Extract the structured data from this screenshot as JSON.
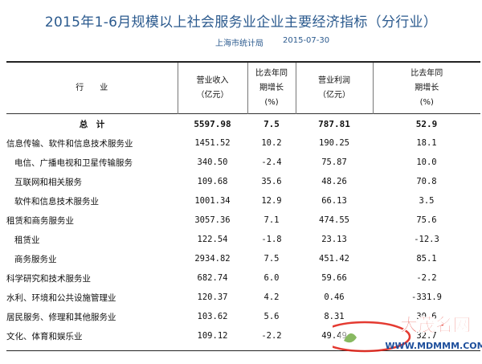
{
  "header": {
    "title": "2015年1-6月规模以上社会服务业企业主要经济指标（分行业）",
    "source": "上海市统计局",
    "date": "2015-07-30"
  },
  "table": {
    "columns": {
      "industry": "行　　业",
      "revenue_l1": "营业收入",
      "revenue_l2": "（亿元）",
      "rev_growth_l1": "比去年同",
      "rev_growth_l2": "期增长",
      "rev_growth_l3": "(%)",
      "profit_l1": "营业利润",
      "profit_l2": "（亿元）",
      "profit_growth_l1": "比去年同",
      "profit_growth_l2": "期增长",
      "profit_growth_l3": "(%)"
    },
    "total": {
      "name": "总　计",
      "revenue": "5597.98",
      "rev_growth": "7.5",
      "profit": "787.81",
      "profit_growth": "52.9"
    },
    "rows": [
      {
        "name": "信息传输、软件和信息技术服务业",
        "revenue": "1451.52",
        "rev_growth": "10.2",
        "profit": "190.25",
        "profit_growth": "18.1"
      },
      {
        "name": "电信、广播电视和卫星传输服务",
        "revenue": "340.50",
        "rev_growth": "-2.4",
        "profit": "75.87",
        "profit_growth": "10.0"
      },
      {
        "name": "互联网和相关服务",
        "revenue": "109.68",
        "rev_growth": "35.6",
        "profit": "48.26",
        "profit_growth": "70.8"
      },
      {
        "name": "软件和信息技术服务业",
        "revenue": "1001.34",
        "rev_growth": "12.9",
        "profit": "66.13",
        "profit_growth": "3.5"
      },
      {
        "name": "租赁和商务服务业",
        "revenue": "3057.36",
        "rev_growth": "7.1",
        "profit": "474.55",
        "profit_growth": "75.6"
      },
      {
        "name": "租赁业",
        "revenue": "122.54",
        "rev_growth": "-1.8",
        "profit": "23.13",
        "profit_growth": "-12.3"
      },
      {
        "name": "商务服务业",
        "revenue": "2934.82",
        "rev_growth": "7.5",
        "profit": "451.42",
        "profit_growth": "85.1"
      },
      {
        "name": "科学研究和技术服务业",
        "revenue": "682.74",
        "rev_growth": "6.0",
        "profit": "59.66",
        "profit_growth": "-2.2"
      },
      {
        "name": "水利、环境和公共设施管理业",
        "revenue": "120.37",
        "rev_growth": "4.2",
        "profit": "0.46",
        "profit_growth": "-331.9"
      },
      {
        "name": "居民服务、修理和其他服务业",
        "revenue": "103.62",
        "rev_growth": "5.6",
        "profit": "8.31",
        "profit_growth": "30.6"
      },
      {
        "name": "文化、体育和娱乐业",
        "revenue": "109.12",
        "rev_growth": "-2.2",
        "profit": "49.49",
        "profit_growth": "32.7"
      }
    ]
  },
  "watermark": {
    "text": "大茂名网",
    "url": "WWW.MDMMM.COM"
  },
  "colors": {
    "title": "#2b5a8e",
    "watermark_red": "#e1251b",
    "watermark_blue": "#1e4f9c",
    "watermark_green": "#6aa83a"
  }
}
